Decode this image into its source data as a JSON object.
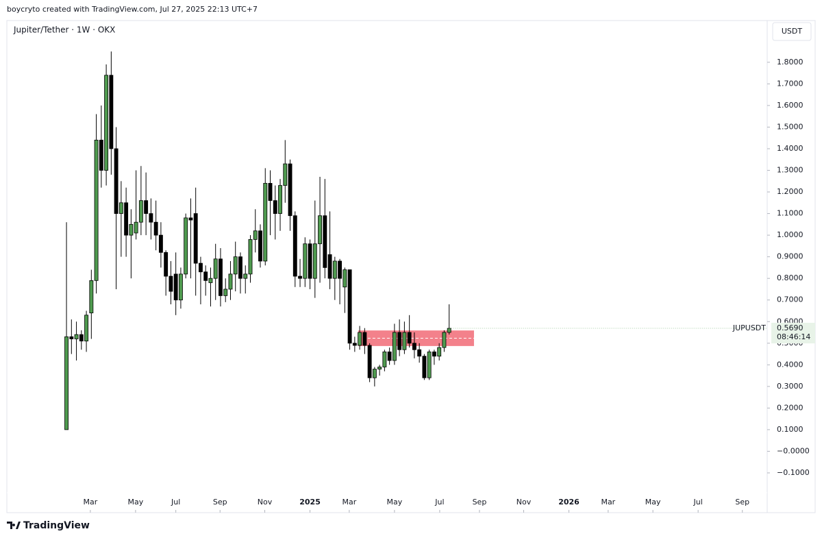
{
  "header": {
    "credit": "boycryto created with TradingView.com, Jul 27, 2025 22:13 UTC+7"
  },
  "footer": {
    "brand": "TradingView"
  },
  "chart_data": {
    "type": "candlestick",
    "title": "Jupiter/Tether · 1W · OKX",
    "currency": "USDT",
    "up_color": "#4f9a4f",
    "down_color": "#000000",
    "wick_color": "#000000",
    "symbol": "JUPUSDT",
    "last_price": {
      "value": 0.569,
      "label": "0.5690"
    },
    "countdown": "08:46:14",
    "ylim": [
      -0.284,
      1.993
    ],
    "yticks": [
      {
        "value": 1.8,
        "label": "1.8000"
      },
      {
        "value": 1.7,
        "label": "1.7000"
      },
      {
        "value": 1.6,
        "label": "1.6000"
      },
      {
        "value": 1.5,
        "label": "1.5000"
      },
      {
        "value": 1.4,
        "label": "1.4000"
      },
      {
        "value": 1.3,
        "label": "1.3000"
      },
      {
        "value": 1.2,
        "label": "1.2000"
      },
      {
        "value": 1.1,
        "label": "1.1000"
      },
      {
        "value": 1.0,
        "label": "1.0000"
      },
      {
        "value": 0.9,
        "label": "0.9000"
      },
      {
        "value": 0.8,
        "label": "0.8000"
      },
      {
        "value": 0.7,
        "label": "0.7000"
      },
      {
        "value": 0.6,
        "label": "0.6000"
      },
      {
        "value": 0.5,
        "label": "0.5000"
      },
      {
        "value": 0.4,
        "label": "0.4000"
      },
      {
        "value": 0.3,
        "label": "0.3000"
      },
      {
        "value": 0.2,
        "label": "0.2000"
      },
      {
        "value": 0.1,
        "label": "0.1000"
      },
      {
        "value": 0,
        "label": "−0.0000"
      },
      {
        "value": -0.1,
        "label": "−0.1000"
      }
    ],
    "xlim": [
      -12,
      141
    ],
    "xticks": [
      {
        "value": 4.8,
        "label": "Mar"
      },
      {
        "value": 13.9,
        "label": "May"
      },
      {
        "value": 22.0,
        "label": "Jul"
      },
      {
        "value": 30.9,
        "label": "Sep"
      },
      {
        "value": 39.9,
        "label": "Nov"
      },
      {
        "value": 49.0,
        "label": "2025",
        "bold": true
      },
      {
        "value": 56.9,
        "label": "Mar"
      },
      {
        "value": 66.0,
        "label": "May"
      },
      {
        "value": 75.1,
        "label": "Jul"
      },
      {
        "value": 83.1,
        "label": "Sep"
      },
      {
        "value": 92.0,
        "label": "Nov"
      },
      {
        "value": 101.1,
        "label": "2026",
        "bold": true
      },
      {
        "value": 109.0,
        "label": "Mar"
      },
      {
        "value": 118.0,
        "label": "May"
      },
      {
        "value": 127.1,
        "label": "Jul"
      },
      {
        "value": 136.0,
        "label": "Sep"
      }
    ],
    "zone": {
      "x": [
        58.7,
        82.0
      ],
      "y": [
        0.487,
        0.559
      ],
      "color": "#f27a85"
    },
    "candles": [
      {
        "open": 0.1,
        "high": 1.06,
        "low": 0.1,
        "close": 0.53
      },
      {
        "open": 0.53,
        "high": 0.61,
        "low": 0.45,
        "close": 0.52
      },
      {
        "open": 0.52,
        "high": 0.6,
        "low": 0.42,
        "close": 0.54
      },
      {
        "open": 0.54,
        "high": 0.56,
        "low": 0.47,
        "close": 0.51
      },
      {
        "open": 0.51,
        "high": 0.65,
        "low": 0.46,
        "close": 0.63
      },
      {
        "open": 0.64,
        "high": 0.84,
        "low": 0.52,
        "close": 0.79
      },
      {
        "open": 0.79,
        "high": 1.56,
        "low": 0.73,
        "close": 1.44
      },
      {
        "open": 1.44,
        "high": 1.6,
        "low": 1.22,
        "close": 1.3
      },
      {
        "open": 1.3,
        "high": 1.79,
        "low": 1.23,
        "close": 1.74
      },
      {
        "open": 1.74,
        "high": 1.85,
        "low": 1.28,
        "close": 1.4
      },
      {
        "open": 1.4,
        "high": 1.5,
        "low": 0.75,
        "close": 1.1
      },
      {
        "open": 1.1,
        "high": 1.25,
        "low": 0.9,
        "close": 1.15
      },
      {
        "open": 1.15,
        "high": 1.22,
        "low": 0.9,
        "close": 1.0
      },
      {
        "open": 1.0,
        "high": 1.12,
        "low": 0.8,
        "close": 1.05
      },
      {
        "open": 1.01,
        "high": 1.3,
        "low": 0.98,
        "close": 1.06
      },
      {
        "open": 1.06,
        "high": 1.32,
        "low": 1.0,
        "close": 1.16
      },
      {
        "open": 1.16,
        "high": 1.29,
        "low": 1.0,
        "close": 1.1
      },
      {
        "open": 1.1,
        "high": 1.17,
        "low": 0.98,
        "close": 1.06
      },
      {
        "open": 1.06,
        "high": 1.16,
        "low": 0.93,
        "close": 1.0
      },
      {
        "open": 1.0,
        "high": 1.06,
        "low": 0.85,
        "close": 0.92
      },
      {
        "open": 0.92,
        "high": 0.93,
        "low": 0.72,
        "close": 0.81
      },
      {
        "open": 0.81,
        "high": 0.88,
        "low": 0.68,
        "close": 0.74
      },
      {
        "open": 0.82,
        "high": 0.92,
        "low": 0.63,
        "close": 0.7
      },
      {
        "open": 0.7,
        "high": 0.85,
        "low": 0.66,
        "close": 0.82
      },
      {
        "open": 0.82,
        "high": 1.1,
        "low": 0.8,
        "close": 1.08
      },
      {
        "open": 1.08,
        "high": 1.17,
        "low": 0.8,
        "close": 1.07
      },
      {
        "open": 1.1,
        "high": 1.22,
        "low": 0.72,
        "close": 0.87
      },
      {
        "open": 0.87,
        "high": 0.9,
        "low": 0.68,
        "close": 0.83
      },
      {
        "open": 0.83,
        "high": 0.86,
        "low": 0.72,
        "close": 0.79
      },
      {
        "open": 0.78,
        "high": 0.85,
        "low": 0.67,
        "close": 0.8
      },
      {
        "open": 0.8,
        "high": 0.96,
        "low": 0.7,
        "close": 0.89
      },
      {
        "open": 0.89,
        "high": 0.94,
        "low": 0.67,
        "close": 0.72
      },
      {
        "open": 0.72,
        "high": 0.8,
        "low": 0.69,
        "close": 0.75
      },
      {
        "open": 0.75,
        "high": 0.88,
        "low": 0.7,
        "close": 0.82
      },
      {
        "open": 0.82,
        "high": 0.97,
        "low": 0.74,
        "close": 0.9
      },
      {
        "open": 0.9,
        "high": 0.92,
        "low": 0.73,
        "close": 0.8
      },
      {
        "open": 0.8,
        "high": 0.86,
        "low": 0.73,
        "close": 0.82
      },
      {
        "open": 0.82,
        "high": 1.0,
        "low": 0.78,
        "close": 0.98
      },
      {
        "open": 0.98,
        "high": 1.12,
        "low": 0.92,
        "close": 1.02
      },
      {
        "open": 1.02,
        "high": 1.05,
        "low": 0.85,
        "close": 0.88
      },
      {
        "open": 0.88,
        "high": 1.31,
        "low": 0.86,
        "close": 1.24
      },
      {
        "open": 1.24,
        "high": 1.3,
        "low": 1.0,
        "close": 1.16
      },
      {
        "open": 1.16,
        "high": 1.23,
        "low": 0.98,
        "close": 1.1
      },
      {
        "open": 1.1,
        "high": 1.26,
        "low": 1.02,
        "close": 1.23
      },
      {
        "open": 1.23,
        "high": 1.44,
        "low": 1.15,
        "close": 1.33
      },
      {
        "open": 1.33,
        "high": 1.35,
        "low": 1.02,
        "close": 1.09
      },
      {
        "open": 1.09,
        "high": 1.11,
        "low": 0.76,
        "close": 0.81
      },
      {
        "open": 0.81,
        "high": 0.89,
        "low": 0.76,
        "close": 0.8
      },
      {
        "open": 0.8,
        "high": 0.99,
        "low": 0.76,
        "close": 0.96
      },
      {
        "open": 0.96,
        "high": 0.98,
        "low": 0.75,
        "close": 0.8
      },
      {
        "open": 0.8,
        "high": 1.16,
        "low": 0.71,
        "close": 0.96
      },
      {
        "open": 0.96,
        "high": 1.27,
        "low": 0.78,
        "close": 1.09
      },
      {
        "open": 1.09,
        "high": 1.26,
        "low": 0.8,
        "close": 0.85
      },
      {
        "open": 0.91,
        "high": 1.11,
        "low": 0.75,
        "close": 0.8
      },
      {
        "open": 0.8,
        "high": 0.9,
        "low": 0.7,
        "close": 0.88
      },
      {
        "open": 0.88,
        "high": 0.89,
        "low": 0.68,
        "close": 0.8
      },
      {
        "open": 0.76,
        "high": 0.85,
        "low": 0.64,
        "close": 0.84
      },
      {
        "open": 0.84,
        "high": 0.84,
        "low": 0.47,
        "close": 0.5
      },
      {
        "open": 0.5,
        "high": 0.53,
        "low": 0.46,
        "close": 0.49
      },
      {
        "open": 0.49,
        "high": 0.58,
        "low": 0.47,
        "close": 0.55
      },
      {
        "open": 0.55,
        "high": 0.57,
        "low": 0.45,
        "close": 0.49
      },
      {
        "open": 0.49,
        "high": 0.5,
        "low": 0.32,
        "close": 0.34
      },
      {
        "open": 0.34,
        "high": 0.39,
        "low": 0.3,
        "close": 0.38
      },
      {
        "open": 0.38,
        "high": 0.4,
        "low": 0.35,
        "close": 0.39
      },
      {
        "open": 0.39,
        "high": 0.47,
        "low": 0.37,
        "close": 0.46
      },
      {
        "open": 0.46,
        "high": 0.48,
        "low": 0.4,
        "close": 0.42
      },
      {
        "open": 0.42,
        "high": 0.59,
        "low": 0.4,
        "close": 0.55
      },
      {
        "open": 0.55,
        "high": 0.61,
        "low": 0.44,
        "close": 0.47
      },
      {
        "open": 0.47,
        "high": 0.6,
        "low": 0.45,
        "close": 0.55
      },
      {
        "open": 0.55,
        "high": 0.63,
        "low": 0.48,
        "close": 0.5
      },
      {
        "open": 0.5,
        "high": 0.55,
        "low": 0.43,
        "close": 0.47
      },
      {
        "open": 0.47,
        "high": 0.5,
        "low": 0.41,
        "close": 0.44
      },
      {
        "open": 0.44,
        "high": 0.45,
        "low": 0.33,
        "close": 0.34
      },
      {
        "open": 0.34,
        "high": 0.47,
        "low": 0.33,
        "close": 0.46
      },
      {
        "open": 0.46,
        "high": 0.47,
        "low": 0.4,
        "close": 0.44
      },
      {
        "open": 0.44,
        "high": 0.5,
        "low": 0.42,
        "close": 0.48
      },
      {
        "open": 0.48,
        "high": 0.56,
        "low": 0.46,
        "close": 0.55
      },
      {
        "open": 0.55,
        "high": 0.68,
        "low": 0.54,
        "close": 0.569
      }
    ]
  }
}
